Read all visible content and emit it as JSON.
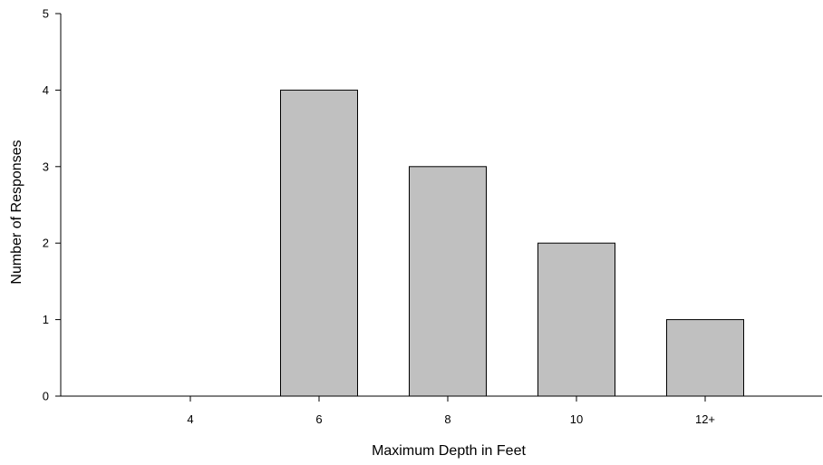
{
  "chart_data": {
    "type": "bar",
    "title": "",
    "xlabel": "Maximum Depth in Feet",
    "ylabel": "Number of Responses",
    "categories": [
      "4",
      "6",
      "8",
      "10",
      "12+"
    ],
    "values": [
      0,
      4,
      3,
      2,
      1
    ],
    "ylim": [
      0,
      5
    ],
    "yticks": [
      "0",
      "1",
      "2",
      "3",
      "4",
      "5"
    ],
    "grid": false,
    "legend": "none",
    "colors": {
      "bar_fill": "#c0c0c0",
      "bar_stroke": "#000000",
      "axis": "#000000"
    }
  }
}
